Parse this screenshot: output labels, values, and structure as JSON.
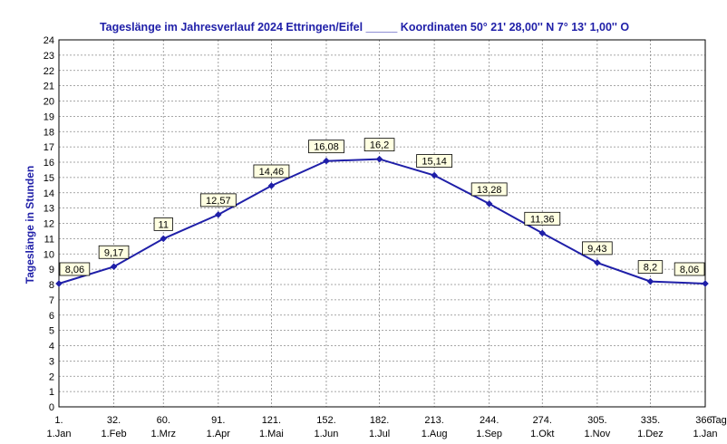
{
  "chart_data": {
    "type": "line",
    "title": "Tageslänge im Jahresverlauf  2024 Ettringen/Eifel _____ Koordinaten 50° 21' 28,00'' N 7° 13' 1,00'' O",
    "ylabel": "Tageslänge in Stunden",
    "xunit": "Tag",
    "ylim": [
      0,
      24
    ],
    "yticks": [
      "0",
      "1",
      "2",
      "3",
      "4",
      "5",
      "6",
      "7",
      "8",
      "9",
      "10",
      "11",
      "12",
      "13",
      "14",
      "15",
      "16",
      "17",
      "18",
      "19",
      "20",
      "21",
      "22",
      "23",
      "24"
    ],
    "x": [
      1,
      32,
      60,
      91,
      121,
      152,
      182,
      213,
      244,
      274,
      305,
      335,
      366
    ],
    "x_day_labels": [
      "1.",
      "32.",
      "60.",
      "91.",
      "121.",
      "152.",
      "182.",
      "213.",
      "244.",
      "274.",
      "305.",
      "335.",
      "366."
    ],
    "x_month_labels": [
      "1.Jan",
      "1.Feb",
      "1.Mrz",
      "1.Apr",
      "1.Mai",
      "1.Jun",
      "1.Jul",
      "1.Aug",
      "1.Sep",
      "1.Okt",
      "1.Nov",
      "1.Dez",
      "1.Jan"
    ],
    "values": [
      8.06,
      9.17,
      11,
      12.57,
      14.46,
      16.08,
      16.2,
      15.14,
      13.28,
      11.36,
      9.43,
      8.2,
      8.06
    ],
    "value_labels": [
      "8,06",
      "9,17",
      "11",
      "12,57",
      "14,46",
      "16,08",
      "16,2",
      "15,14",
      "13,28",
      "11,36",
      "9,43",
      "8,2",
      "8,06"
    ],
    "grid": true,
    "line_color": "#1f1fa8",
    "text_color": "#1f1fa8",
    "label_bg": "#ffffe1"
  }
}
